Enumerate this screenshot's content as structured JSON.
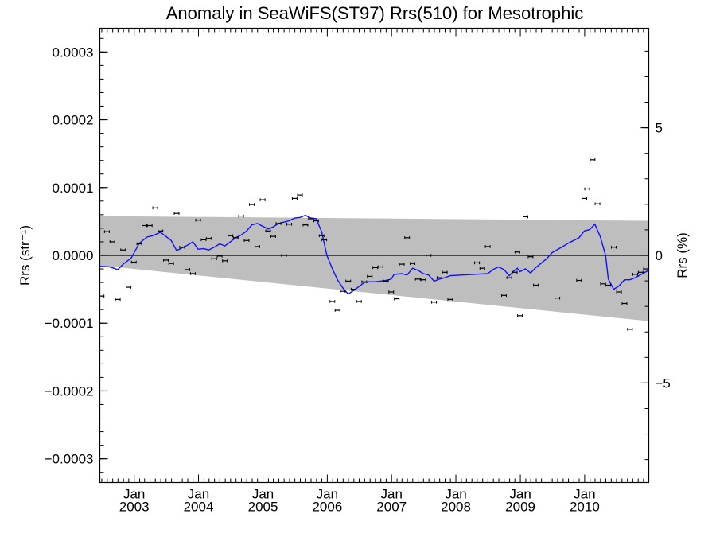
{
  "chart_data": {
    "type": "scatter",
    "title": "Anomaly in SeaWiFS(ST97) Rrs(510) for Mesotrophic",
    "ylabel_left": "Rrs (str⁻¹)",
    "ylabel_right": "Rrs (%)",
    "xlim": [
      "2002-06-20",
      "2010-12-31"
    ],
    "ylim_left": [
      -0.000335,
      0.000335
    ],
    "ylim_right": [
      -8.9,
      8.9
    ],
    "y_ticks_left": [
      {
        "value": 0.0003,
        "label": "0.0003"
      },
      {
        "value": 0.0002,
        "label": "0.0002"
      },
      {
        "value": 0.0001,
        "label": "0.0001"
      },
      {
        "value": 0.0,
        "label": "0.0000"
      },
      {
        "value": -0.0001,
        "label": "−0.0001"
      },
      {
        "value": -0.0002,
        "label": "−0.0002"
      },
      {
        "value": -0.0003,
        "label": "−0.0003"
      }
    ],
    "y_ticks_right": [
      {
        "value": 5,
        "label": "5"
      },
      {
        "value": 0,
        "label": "0"
      },
      {
        "value": -5,
        "label": "−5"
      }
    ],
    "x_ticks": [
      {
        "date": "2003-01-01",
        "month": "Jan",
        "year": "2003"
      },
      {
        "date": "2004-01-01",
        "month": "Jan",
        "year": "2004"
      },
      {
        "date": "2005-01-01",
        "month": "Jan",
        "year": "2005"
      },
      {
        "date": "2006-01-01",
        "month": "Jan",
        "year": "2006"
      },
      {
        "date": "2007-01-01",
        "month": "Jan",
        "year": "2007"
      },
      {
        "date": "2008-01-01",
        "month": "Jan",
        "year": "2008"
      },
      {
        "date": "2009-01-01",
        "month": "Jan",
        "year": "2009"
      },
      {
        "date": "2010-01-01",
        "month": "Jan",
        "year": "2010"
      }
    ],
    "zero_line": 0.0,
    "shaded_band": {
      "start": "2002-06-20",
      "end": "2010-12-31",
      "upper": [
        5.8e-05,
        5.1e-05
      ],
      "lower": [
        -1.5e-05,
        -9.7e-05
      ],
      "color": "#bebebe"
    },
    "series": [
      {
        "kind": "points_with_error_bars",
        "color": "#000000",
        "points": [
          [
            "2002-06-30",
            -6e-05
          ],
          [
            "2002-07-30",
            3.5e-05
          ],
          [
            "2002-08-30",
            2e-05
          ],
          [
            "2002-09-30",
            -6.5e-05
          ],
          [
            "2002-10-30",
            8e-06
          ],
          [
            "2002-11-30",
            -4.7e-05
          ],
          [
            "2002-12-30",
            -1e-05
          ],
          [
            "2003-01-30",
            1.7e-05
          ],
          [
            "2003-02-28",
            4.4e-05
          ],
          [
            "2003-03-30",
            4.4e-05
          ],
          [
            "2003-04-30",
            7e-05
          ],
          [
            "2003-05-30",
            3.6e-05
          ],
          [
            "2003-06-30",
            -7e-06
          ],
          [
            "2003-07-30",
            -1.2e-05
          ],
          [
            "2003-08-30",
            6.2e-05
          ],
          [
            "2003-09-30",
            1.2e-05
          ],
          [
            "2003-10-30",
            -2.1e-05
          ],
          [
            "2003-11-30",
            -2.7e-05
          ],
          [
            "2003-12-30",
            5.2e-05
          ],
          [
            "2004-01-30",
            2.3e-05
          ],
          [
            "2004-02-28",
            2.5e-05
          ],
          [
            "2004-03-30",
            -5e-06
          ],
          [
            "2004-04-30",
            -1e-06
          ],
          [
            "2004-05-30",
            -8e-06
          ],
          [
            "2004-06-30",
            2.9e-05
          ],
          [
            "2004-07-30",
            2.6e-05
          ],
          [
            "2004-08-30",
            5.8e-05
          ],
          [
            "2004-09-30",
            2.2e-05
          ],
          [
            "2004-10-30",
            7.5e-05
          ],
          [
            "2004-11-30",
            1.3e-05
          ],
          [
            "2004-12-30",
            8.2e-05
          ],
          [
            "2005-01-30",
            3.6e-05
          ],
          [
            "2005-02-28",
            2.8e-05
          ],
          [
            "2005-03-30",
            4.7e-05
          ],
          [
            "2005-04-30",
            0.0
          ],
          [
            "2005-05-30",
            4.6e-05
          ],
          [
            "2005-06-30",
            8.4e-05
          ],
          [
            "2005-07-30",
            8.9e-05
          ],
          [
            "2005-08-30",
            4.5e-05
          ],
          [
            "2005-09-30",
            5.4e-05
          ],
          [
            "2005-10-30",
            5.1e-05
          ],
          [
            "2005-11-30",
            2.9e-05
          ],
          [
            "2005-12-15",
            2.3e-05
          ],
          [
            "2006-01-30",
            -6.8e-05
          ],
          [
            "2006-02-28",
            -8.1e-05
          ],
          [
            "2006-03-30",
            -5.3e-05
          ],
          [
            "2006-04-30",
            -3.8e-05
          ],
          [
            "2006-05-30",
            -5e-05
          ],
          [
            "2006-06-30",
            -6.8e-05
          ],
          [
            "2006-07-30",
            -3.9e-05
          ],
          [
            "2006-08-30",
            -3.1e-05
          ],
          [
            "2006-09-30",
            -1.8e-05
          ],
          [
            "2006-10-30",
            -1.7e-05
          ],
          [
            "2006-11-30",
            -3.8e-05
          ],
          [
            "2006-12-30",
            -5.4e-05
          ],
          [
            "2007-01-30",
            -6.4e-05
          ],
          [
            "2007-02-28",
            -1.3e-05
          ],
          [
            "2007-03-30",
            2.6e-05
          ],
          [
            "2007-04-30",
            -1.2e-05
          ],
          [
            "2007-05-30",
            -3.5e-05
          ],
          [
            "2007-06-30",
            -3.6e-05
          ],
          [
            "2007-07-30",
            0.0
          ],
          [
            "2007-08-30",
            -6.9e-05
          ],
          [
            "2007-09-30",
            -3.3e-05
          ],
          [
            "2007-10-30",
            -2.5e-05
          ],
          [
            "2007-11-30",
            -6.5e-05
          ],
          [
            "2008-04-30",
            -1.1e-05
          ],
          [
            "2008-05-30",
            -1.9e-05
          ],
          [
            "2008-06-30",
            1.3e-05
          ],
          [
            "2008-09-30",
            -5.9e-05
          ],
          [
            "2008-10-30",
            -3.3e-05
          ],
          [
            "2008-11-30",
            -2.5e-05
          ],
          [
            "2008-12-15",
            5e-06
          ],
          [
            "2008-12-30",
            -8.9e-05
          ],
          [
            "2009-01-30",
            5.7e-05
          ],
          [
            "2009-02-28",
            -2e-06
          ],
          [
            "2009-03-30",
            -4.4e-05
          ],
          [
            "2009-07-30",
            -6.3e-05
          ],
          [
            "2009-11-30",
            -3.7e-05
          ],
          [
            "2009-12-30",
            8.4e-05
          ],
          [
            "2010-01-15",
            9.8e-05
          ],
          [
            "2010-02-15",
            0.000141
          ],
          [
            "2010-03-15",
            7.6e-05
          ],
          [
            "2010-04-15",
            -4.2e-05
          ],
          [
            "2010-05-15",
            -4.4e-05
          ],
          [
            "2010-06-15",
            1.2e-05
          ],
          [
            "2010-07-15",
            -5.4e-05
          ],
          [
            "2010-08-15",
            -7.1e-05
          ],
          [
            "2010-09-15",
            -0.000109
          ],
          [
            "2010-10-15",
            -2.8e-05
          ],
          [
            "2010-11-15",
            -2.5e-05
          ],
          [
            "2010-12-15",
            -2e-05
          ]
        ]
      },
      {
        "kind": "line",
        "color": "#1010ff",
        "points": [
          [
            "2002-06-20",
            -1.6e-05
          ],
          [
            "2002-08-15",
            -1.7e-05
          ],
          [
            "2002-09-30",
            -2.1e-05
          ],
          [
            "2002-10-30",
            -1.3e-05
          ],
          [
            "2002-12-15",
            -4e-06
          ],
          [
            "2003-01-30",
            1.8e-05
          ],
          [
            "2003-03-15",
            2.7e-05
          ],
          [
            "2003-04-15",
            2.9e-05
          ],
          [
            "2003-05-30",
            3.4e-05
          ],
          [
            "2003-06-30",
            2.8e-05
          ],
          [
            "2003-07-30",
            2.2e-05
          ],
          [
            "2003-08-30",
            7e-06
          ],
          [
            "2003-09-30",
            1.1e-05
          ],
          [
            "2003-10-30",
            1.5e-05
          ],
          [
            "2003-11-30",
            2e-05
          ],
          [
            "2003-12-30",
            9e-06
          ],
          [
            "2004-01-30",
            1e-05
          ],
          [
            "2004-02-28",
            8e-06
          ],
          [
            "2004-03-30",
            1.2e-05
          ],
          [
            "2004-04-30",
            1.7e-05
          ],
          [
            "2004-05-30",
            1.4e-05
          ],
          [
            "2004-06-30",
            2e-05
          ],
          [
            "2004-07-30",
            2.6e-05
          ],
          [
            "2004-08-30",
            3e-05
          ],
          [
            "2004-09-30",
            3.6e-05
          ],
          [
            "2004-10-30",
            4.5e-05
          ],
          [
            "2004-11-30",
            4.7e-05
          ],
          [
            "2004-12-30",
            4.3e-05
          ],
          [
            "2005-01-30",
            3.9e-05
          ],
          [
            "2005-02-28",
            4.2e-05
          ],
          [
            "2005-03-30",
            4.7e-05
          ],
          [
            "2005-04-30",
            4.9e-05
          ],
          [
            "2005-05-30",
            5.1e-05
          ],
          [
            "2005-06-30",
            5.5e-05
          ],
          [
            "2005-07-30",
            5.6e-05
          ],
          [
            "2005-08-30",
            5.9e-05
          ],
          [
            "2005-09-30",
            5.5e-05
          ],
          [
            "2005-10-30",
            5.4e-05
          ],
          [
            "2005-11-30",
            3.5e-05
          ],
          [
            "2005-12-30",
            0.0
          ],
          [
            "2006-01-30",
            -2e-05
          ],
          [
            "2006-02-28",
            -3.6e-05
          ],
          [
            "2006-03-30",
            -4.8e-05
          ],
          [
            "2006-04-30",
            -5.7e-05
          ],
          [
            "2006-05-30",
            -5.2e-05
          ],
          [
            "2006-06-30",
            -4.6e-05
          ],
          [
            "2006-07-30",
            -4e-05
          ],
          [
            "2006-08-30",
            -3.9e-05
          ],
          [
            "2006-09-30",
            -3.9e-05
          ],
          [
            "2006-10-30",
            -3.8e-05
          ],
          [
            "2006-11-30",
            -3.7e-05
          ],
          [
            "2006-12-30",
            -3.5e-05
          ],
          [
            "2007-01-15",
            -2.8e-05
          ],
          [
            "2007-02-28",
            -2.7e-05
          ],
          [
            "2007-03-30",
            -2.9e-05
          ],
          [
            "2007-04-30",
            -1.9e-05
          ],
          [
            "2007-05-30",
            -2.2e-05
          ],
          [
            "2007-06-30",
            -2.7e-05
          ],
          [
            "2007-07-30",
            -2.9e-05
          ],
          [
            "2007-08-30",
            -3.8e-05
          ],
          [
            "2007-09-30",
            -3.5e-05
          ],
          [
            "2007-10-30",
            -3.3e-05
          ],
          [
            "2007-11-30",
            -3e-05
          ],
          [
            "2008-06-30",
            -2.7e-05
          ],
          [
            "2008-07-30",
            -2.1e-05
          ],
          [
            "2008-08-30",
            -1.7e-05
          ],
          [
            "2008-09-30",
            -2.1e-05
          ],
          [
            "2008-10-30",
            -3e-05
          ],
          [
            "2008-11-30",
            -2.2e-05
          ],
          [
            "2008-12-15",
            -1.9e-05
          ],
          [
            "2008-12-30",
            -2.4e-05
          ],
          [
            "2009-01-30",
            -2e-05
          ],
          [
            "2009-02-28",
            -2.6e-05
          ],
          [
            "2009-03-30",
            -1.8e-05
          ],
          [
            "2009-05-30",
            -5e-06
          ],
          [
            "2009-06-30",
            4e-06
          ],
          [
            "2009-08-30",
            1.3e-05
          ],
          [
            "2009-09-30",
            1.8e-05
          ],
          [
            "2009-11-30",
            2.6e-05
          ],
          [
            "2009-12-30",
            3.6e-05
          ],
          [
            "2010-01-30",
            3.8e-05
          ],
          [
            "2010-02-28",
            4.6e-05
          ],
          [
            "2010-03-30",
            2.8e-05
          ],
          [
            "2010-04-30",
            0.0
          ],
          [
            "2010-05-15",
            -3.5e-05
          ],
          [
            "2010-06-15",
            -5e-05
          ],
          [
            "2010-07-15",
            -4.5e-05
          ],
          [
            "2010-08-15",
            -3.6e-05
          ],
          [
            "2010-09-15",
            -3.6e-05
          ],
          [
            "2010-10-15",
            -3.3e-05
          ],
          [
            "2010-12-31",
            -2.2e-05
          ]
        ]
      }
    ]
  }
}
